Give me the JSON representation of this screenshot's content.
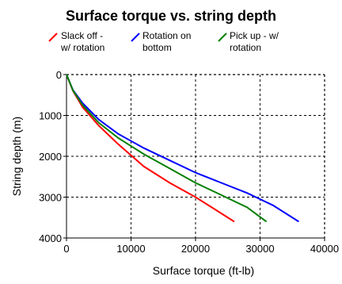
{
  "chart_data": {
    "type": "line",
    "title": "Surface torque vs. string depth",
    "xlabel": "Surface torque (ft-lb)",
    "ylabel": "String depth (m)",
    "xlim": [
      0,
      40000
    ],
    "ylim": [
      0,
      4000
    ],
    "y_inverted": true,
    "x_ticks": [
      0,
      10000,
      20000,
      30000,
      40000
    ],
    "y_ticks": [
      0,
      1000,
      2000,
      3000,
      4000
    ],
    "grid": "dotted",
    "legend_position": "top",
    "series": [
      {
        "name": "Slack off - w/ rotation",
        "color": "#ff0000",
        "x": [
          0,
          1000,
          2500,
          5000,
          8000,
          12000,
          16000,
          20000,
          23000,
          26000
        ],
        "y": [
          0,
          400,
          800,
          1250,
          1700,
          2250,
          2650,
          3000,
          3300,
          3600
        ]
      },
      {
        "name": "Rotation on bottom",
        "color": "#0000ff",
        "x": [
          0,
          1000,
          2500,
          5000,
          8000,
          12000,
          16000,
          20000,
          24000,
          28000,
          32000,
          36000
        ],
        "y": [
          0,
          380,
          700,
          1100,
          1450,
          1800,
          2100,
          2400,
          2650,
          2900,
          3200,
          3600
        ]
      },
      {
        "name": "Pick up - w/ rotation",
        "color": "#008000",
        "x": [
          0,
          1000,
          2500,
          5000,
          8000,
          12000,
          16000,
          20000,
          24000,
          28000,
          31000
        ],
        "y": [
          0,
          390,
          750,
          1180,
          1550,
          1950,
          2300,
          2650,
          2950,
          3250,
          3600
        ]
      }
    ]
  }
}
